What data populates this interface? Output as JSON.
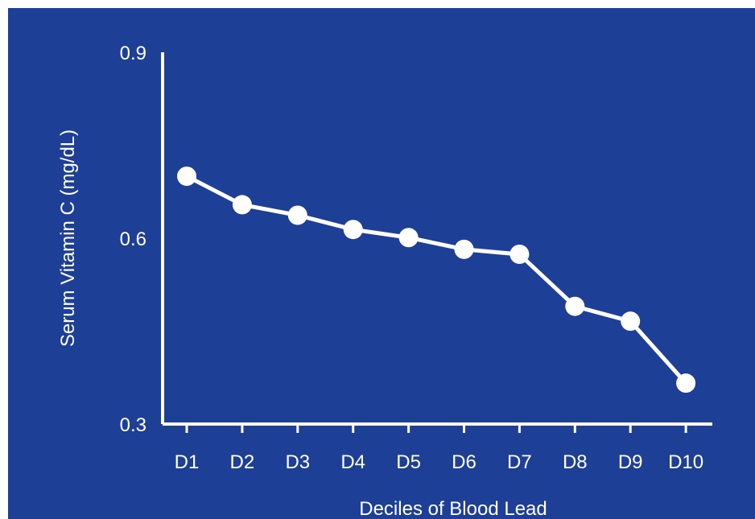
{
  "chart_data": {
    "type": "line",
    "title": "",
    "xlabel": "Deciles of Blood Lead",
    "ylabel": "Serum Vitamin C (mg/dL)",
    "categories": [
      "D1",
      "D2",
      "D3",
      "D4",
      "D5",
      "D6",
      "D7",
      "D8",
      "D9",
      "D10"
    ],
    "series": [
      {
        "values": [
          0.7,
          0.654,
          0.637,
          0.614,
          0.601,
          0.582,
          0.574,
          0.49,
          0.466,
          0.366
        ]
      }
    ],
    "ylim": [
      0.3,
      0.9
    ],
    "yticks": [
      "0.3",
      "0.6",
      "0.9"
    ],
    "grid": false,
    "legend": "none",
    "colors": {
      "background": "#1e3f96",
      "line": "#ffffff",
      "marker": "#ffffff",
      "axis": "#ffffff"
    }
  }
}
